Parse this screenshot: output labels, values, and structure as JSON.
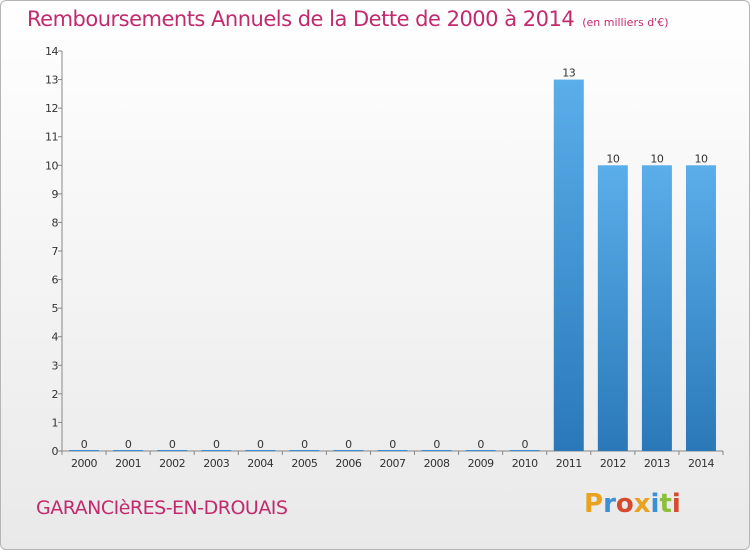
{
  "header": {
    "title": "Remboursements Annuels de la Dette de 2000 à 2014",
    "subtitle": "(en milliers d'€)"
  },
  "footer": {
    "commune": "GARANCIèRES-EN-DROUAIS",
    "logo_letters": [
      "P",
      "r",
      "o",
      "x",
      "i",
      "t",
      "i"
    ],
    "logo_colors": [
      "#e8a21f",
      "#3a8fd6",
      "#d64a2e",
      "#e8a21f",
      "#3a8fd6",
      "#8cbf3a",
      "#d64a2e"
    ]
  },
  "chart_data": {
    "type": "bar",
    "categories": [
      "2000",
      "2001",
      "2002",
      "2003",
      "2004",
      "2005",
      "2006",
      "2007",
      "2008",
      "2009",
      "2010",
      "2011",
      "2012",
      "2013",
      "2014"
    ],
    "values": [
      0,
      0,
      0,
      0,
      0,
      0,
      0,
      0,
      0,
      0,
      0,
      13,
      10,
      10,
      10
    ],
    "ylim": [
      0,
      14
    ],
    "yticks": [
      0,
      1,
      2,
      3,
      4,
      5,
      6,
      7,
      8,
      9,
      10,
      11,
      12,
      13,
      14
    ],
    "bar_color": "#4a9fe0",
    "grid": false
  }
}
